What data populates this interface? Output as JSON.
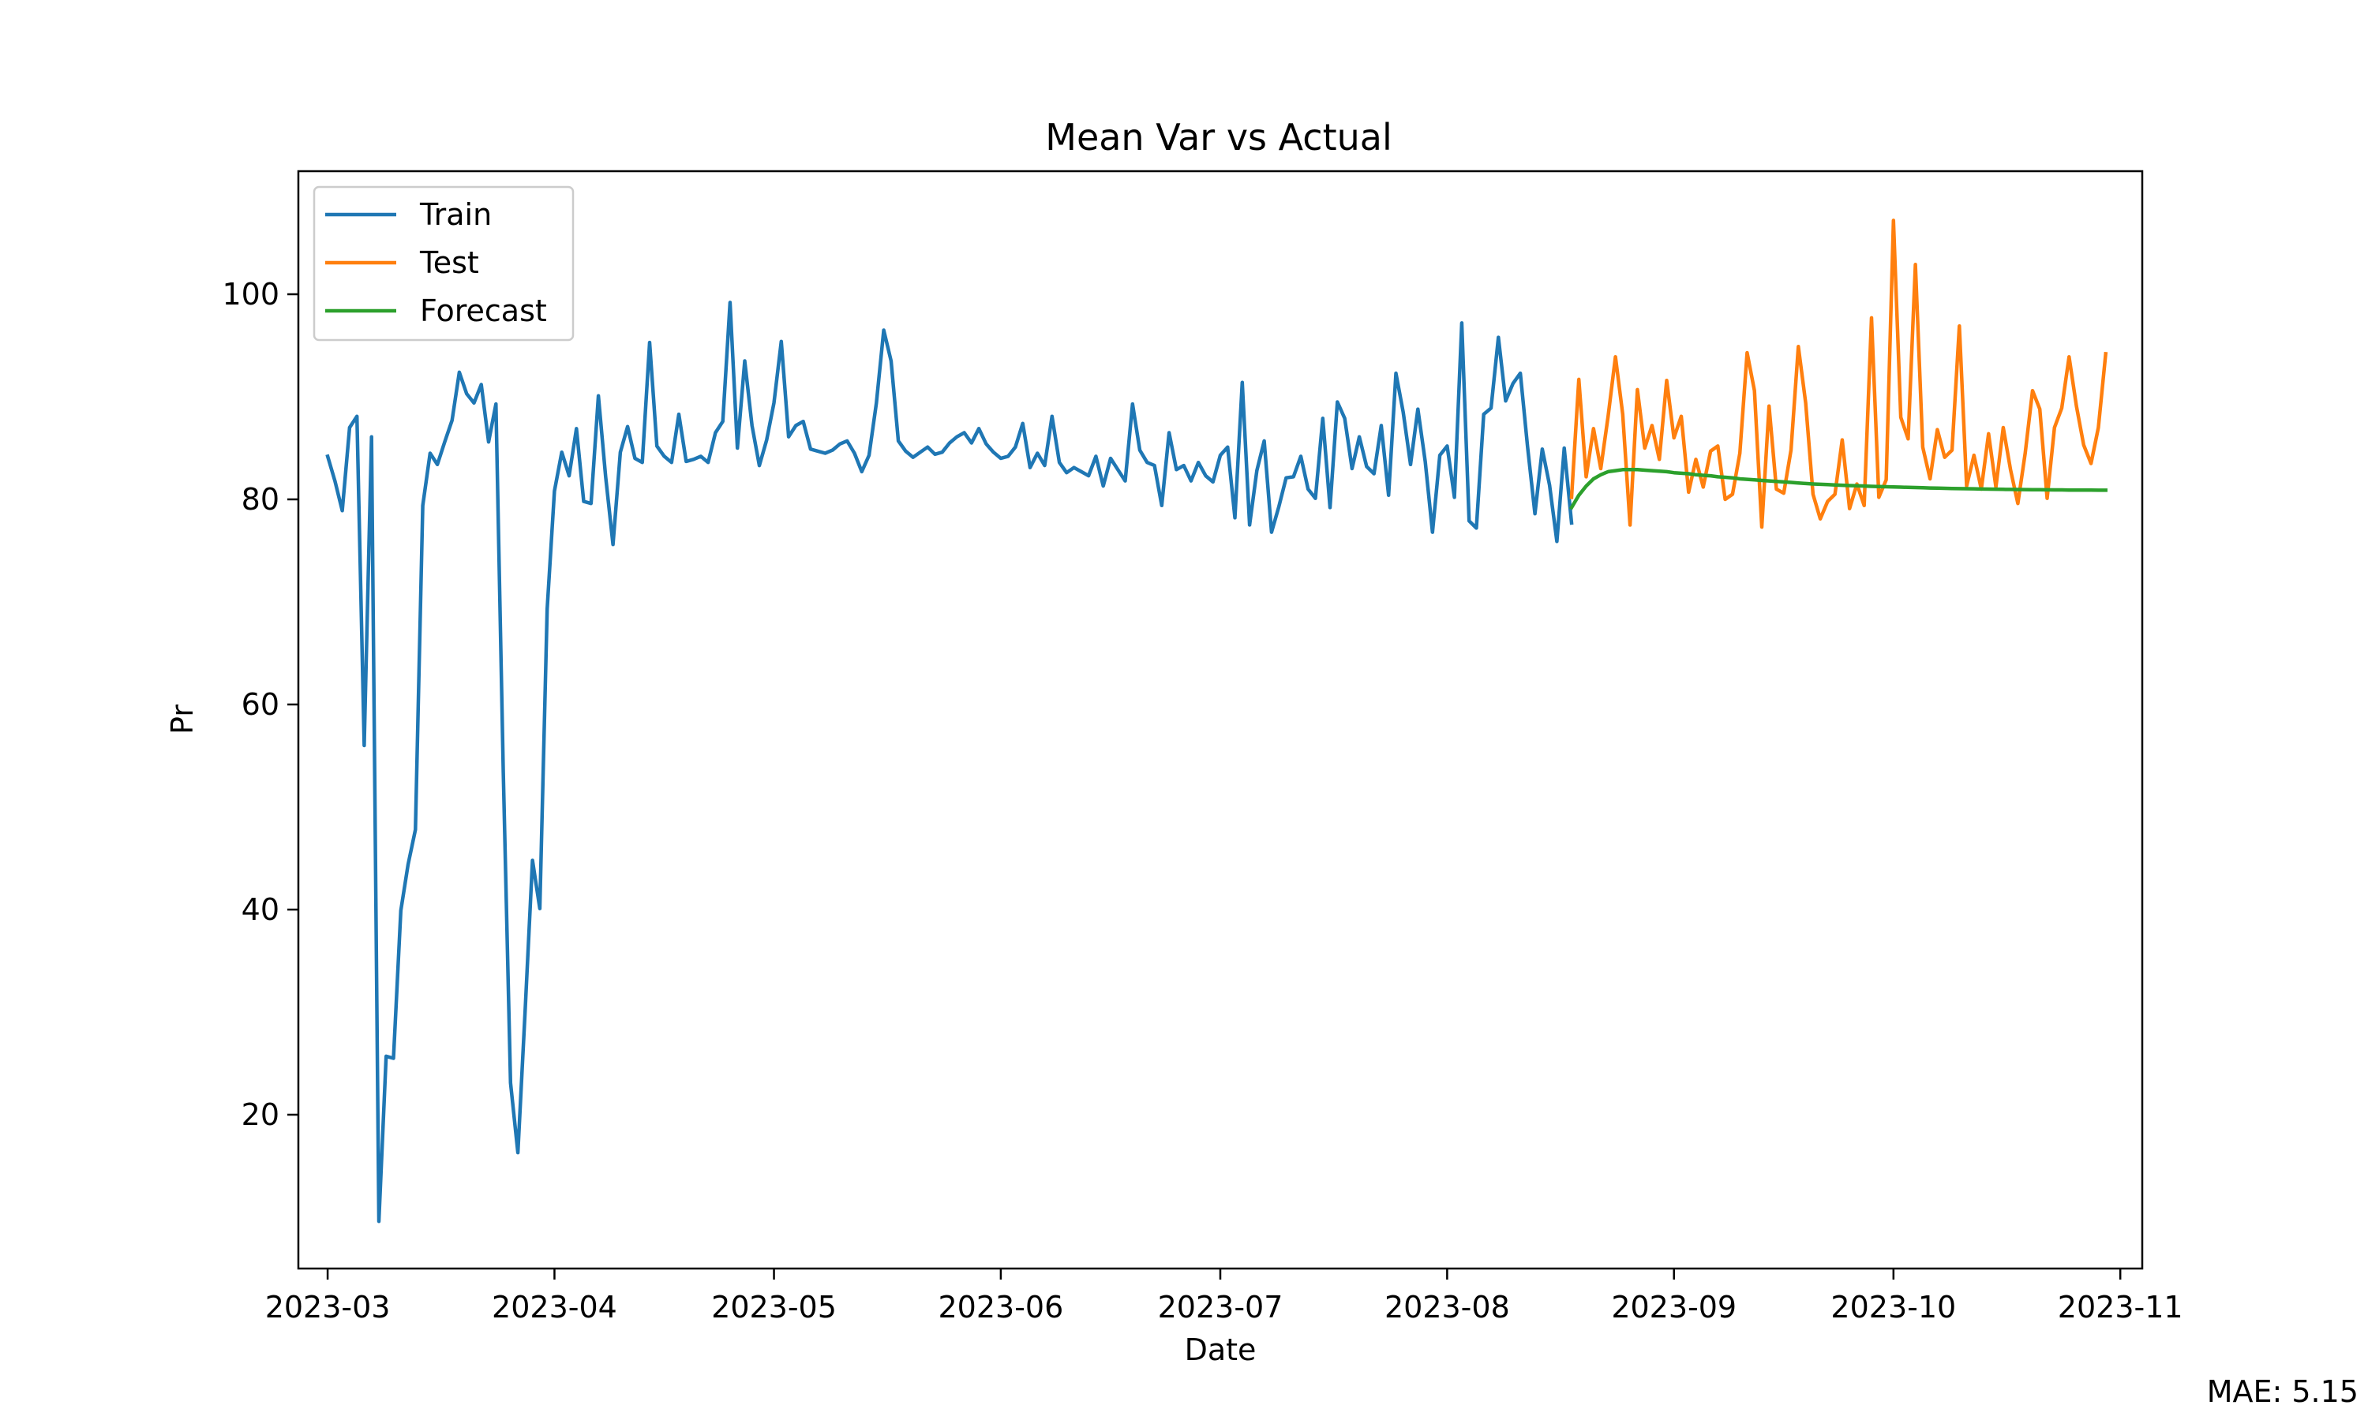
{
  "chart_data": {
    "type": "line",
    "title": "Mean Var vs Actual",
    "xlabel": "Date",
    "ylabel": "Pr",
    "x_axis": "date",
    "xlim": [
      "2023-02-25",
      "2023-11-04"
    ],
    "ylim": [
      5,
      112
    ],
    "xticks": [
      "2023-03-01",
      "2023-04-01",
      "2023-05-01",
      "2023-06-01",
      "2023-07-01",
      "2023-08-01",
      "2023-09-01",
      "2023-10-01",
      "2023-11-01"
    ],
    "xtick_labels": [
      "2023-03",
      "2023-04",
      "2023-05",
      "2023-06",
      "2023-07",
      "2023-08",
      "2023-09",
      "2023-10",
      "2023-11"
    ],
    "yticks": [
      20,
      40,
      60,
      80,
      100
    ],
    "ytick_labels": [
      "20",
      "40",
      "60",
      "80",
      "100"
    ],
    "grid": false,
    "legend_position": "top-left",
    "series": [
      {
        "name": "Train",
        "color": "#1f77b4",
        "start_date": "2023-03-01",
        "values": [
          84.2,
          81.8,
          78.9,
          87.0,
          88.1,
          56.0,
          86.1,
          9.6,
          25.7,
          25.5,
          39.9,
          44.4,
          47.8,
          79.4,
          84.5,
          83.4,
          85.6,
          87.7,
          92.4,
          90.3,
          89.4,
          91.2,
          85.6,
          89.3,
          53.4,
          23.1,
          16.3,
          30.3,
          44.8,
          40.1,
          69.3,
          80.8,
          84.6,
          82.3,
          86.9,
          79.8,
          79.6,
          90.1,
          82.2,
          75.6,
          84.6,
          87.1,
          84.0,
          83.6,
          95.3,
          85.2,
          84.2,
          83.6,
          88.3,
          83.7,
          83.9,
          84.2,
          83.6,
          86.5,
          87.6,
          99.2,
          85.0,
          93.5,
          87.2,
          83.3,
          85.8,
          89.4,
          95.4,
          86.1,
          87.2,
          87.6,
          84.9,
          84.7,
          84.5,
          84.8,
          85.4,
          85.7,
          84.5,
          82.7,
          84.3,
          89.4,
          96.5,
          93.5,
          85.7,
          84.7,
          84.1,
          84.6,
          85.1,
          84.4,
          84.6,
          85.5,
          86.1,
          86.5,
          85.5,
          86.9,
          85.4,
          84.6,
          84.0,
          84.2,
          85.1,
          87.4,
          83.1,
          84.5,
          83.3,
          88.1,
          83.6,
          82.6,
          83.1,
          82.7,
          82.3,
          84.2,
          81.3,
          84.0,
          82.9,
          81.8,
          89.3,
          84.8,
          83.6,
          83.3,
          79.4,
          86.5,
          82.9,
          83.3,
          81.8,
          83.6,
          82.3,
          81.7,
          84.3,
          85.1,
          78.2,
          91.4,
          77.5,
          82.8,
          85.7,
          76.8,
          79.3,
          82.1,
          82.2,
          84.2,
          81.0,
          80.1,
          87.9,
          79.2,
          89.5,
          87.9,
          83.0,
          86.1,
          83.2,
          82.5,
          87.2,
          80.4,
          92.3,
          88.5,
          83.4,
          88.8,
          83.7,
          76.8,
          84.3,
          85.2,
          80.2,
          97.2,
          77.9,
          77.2,
          88.3,
          88.9,
          95.8,
          89.6,
          91.3,
          92.3,
          85.1,
          78.6,
          84.9,
          81.4,
          75.9,
          85.0,
          77.7
        ]
      },
      {
        "name": "Test",
        "color": "#ff7f0e",
        "start_date": "2023-08-18",
        "values": [
          80.2,
          91.7,
          82.2,
          86.9,
          83.0,
          88.1,
          93.9,
          88.3,
          77.5,
          90.7,
          85.0,
          87.2,
          83.9,
          91.6,
          86.0,
          88.1,
          80.7,
          83.9,
          81.2,
          84.7,
          85.2,
          80.0,
          80.5,
          84.5,
          94.3,
          90.6,
          77.3,
          89.1,
          81.0,
          80.6,
          84.8,
          94.9,
          89.4,
          80.5,
          78.1,
          79.8,
          80.5,
          85.8,
          79.1,
          81.5,
          79.4,
          97.7,
          80.2,
          81.9,
          107.2,
          88.0,
          85.9,
          102.9,
          85.1,
          82.0,
          86.8,
          84.1,
          84.8,
          96.9,
          81.3,
          84.3,
          81.0,
          86.4,
          81.2,
          87.0,
          82.9,
          79.6,
          84.5,
          90.6,
          88.8,
          80.1,
          87.0,
          88.9,
          93.9,
          89.1,
          85.3,
          83.5,
          87.0,
          94.2
        ]
      },
      {
        "name": "Forecast",
        "color": "#2ca02c",
        "start_date": "2023-08-18",
        "values": [
          79.2,
          80.4,
          81.3,
          82.0,
          82.4,
          82.7,
          82.8,
          82.9,
          82.9,
          82.9,
          82.85,
          82.8,
          82.75,
          82.7,
          82.6,
          82.55,
          82.5,
          82.4,
          82.35,
          82.3,
          82.2,
          82.15,
          82.1,
          82.0,
          81.95,
          81.9,
          81.85,
          81.8,
          81.75,
          81.7,
          81.65,
          81.6,
          81.55,
          81.5,
          81.47,
          81.44,
          81.41,
          81.38,
          81.35,
          81.32,
          81.3,
          81.27,
          81.25,
          81.23,
          81.21,
          81.19,
          81.17,
          81.15,
          81.13,
          81.11,
          81.09,
          81.08,
          81.06,
          81.05,
          81.04,
          81.03,
          81.01,
          81.0,
          80.99,
          80.98,
          80.97,
          80.96,
          80.95,
          80.94,
          80.94,
          80.93,
          80.92,
          80.92,
          80.91,
          80.91,
          80.9,
          80.9,
          80.89,
          80.89
        ]
      }
    ],
    "annotation": "MAE: 5.15"
  }
}
